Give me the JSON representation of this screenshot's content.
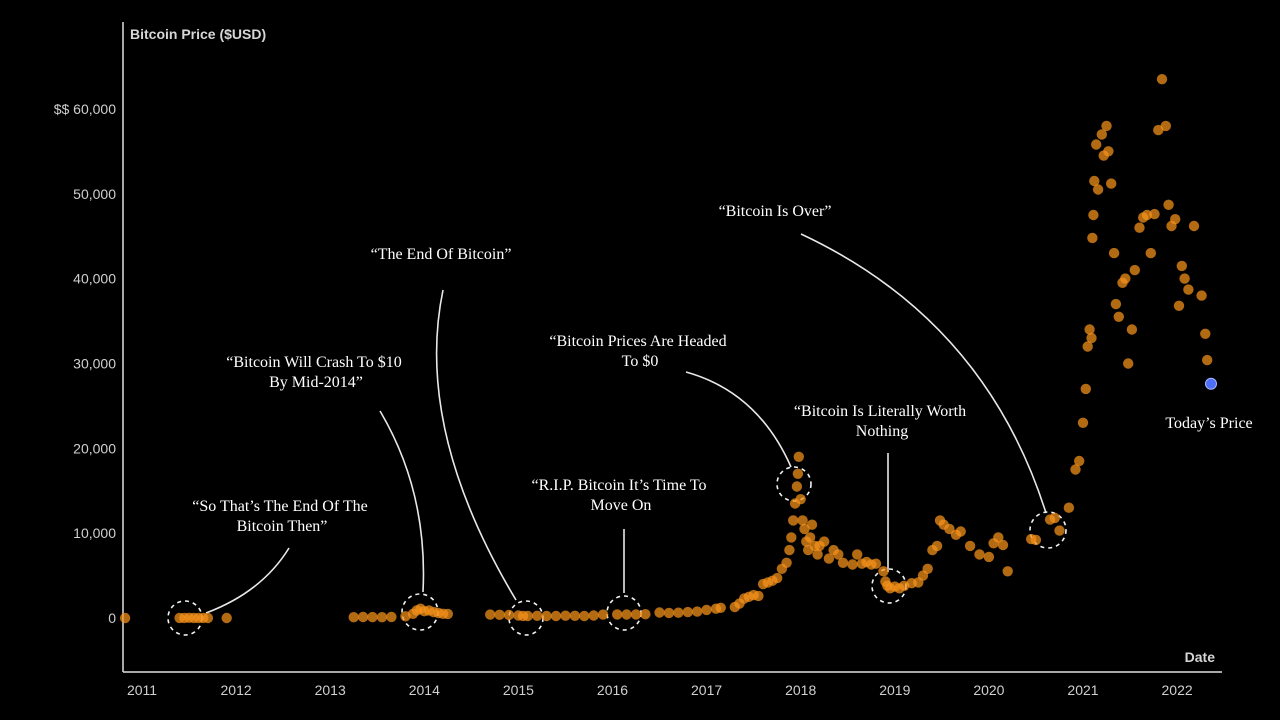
{
  "chart_data": {
    "type": "scatter",
    "title": "",
    "ylabel": "Bitcoin Price ($USD)",
    "xlabel": "Date",
    "xlim": [
      2010.85,
      2022.45
    ],
    "ylim": [
      -6000,
      68000
    ],
    "grid": false,
    "y_ticks": [
      {
        "value": 0,
        "label": "0"
      },
      {
        "value": 10000,
        "label": "10,000"
      },
      {
        "value": 20000,
        "label": "20,000"
      },
      {
        "value": 30000,
        "label": "30,000"
      },
      {
        "value": 40000,
        "label": "40,000"
      },
      {
        "value": 50000,
        "label": "50,000"
      },
      {
        "value": 60000,
        "label": "$$ 60,000"
      }
    ],
    "x_ticks": [
      {
        "value": 2011,
        "label": "2011"
      },
      {
        "value": 2012,
        "label": "2012"
      },
      {
        "value": 2013,
        "label": "2013"
      },
      {
        "value": 2014,
        "label": "2014"
      },
      {
        "value": 2015,
        "label": "2015"
      },
      {
        "value": 2016,
        "label": "2016"
      },
      {
        "value": 2017,
        "label": "2017"
      },
      {
        "value": 2018,
        "label": "2018"
      },
      {
        "value": 2019,
        "label": "2019"
      },
      {
        "value": 2020,
        "label": "2020"
      },
      {
        "value": 2021,
        "label": "2021"
      },
      {
        "value": 2022,
        "label": "2022"
      }
    ],
    "series": [
      {
        "name": "Bitcoin Price",
        "color": "#f7931a",
        "points": [
          [
            2010.82,
            0
          ],
          [
            2011.4,
            10
          ],
          [
            2011.45,
            15
          ],
          [
            2011.5,
            20
          ],
          [
            2011.55,
            15
          ],
          [
            2011.6,
            12
          ],
          [
            2011.65,
            8
          ],
          [
            2011.7,
            5
          ],
          [
            2011.9,
            3
          ],
          [
            2013.25,
            100
          ],
          [
            2013.35,
            120
          ],
          [
            2013.45,
            110
          ],
          [
            2013.55,
            100
          ],
          [
            2013.65,
            130
          ],
          [
            2013.8,
            200
          ],
          [
            2013.88,
            500
          ],
          [
            2013.92,
            900
          ],
          [
            2013.96,
            1100
          ],
          [
            2014.0,
            800
          ],
          [
            2014.05,
            900
          ],
          [
            2014.1,
            700
          ],
          [
            2014.15,
            600
          ],
          [
            2014.2,
            500
          ],
          [
            2014.25,
            480
          ],
          [
            2014.7,
            400
          ],
          [
            2014.8,
            380
          ],
          [
            2014.9,
            350
          ],
          [
            2015.0,
            300
          ],
          [
            2015.05,
            250
          ],
          [
            2015.1,
            240
          ],
          [
            2015.2,
            260
          ],
          [
            2015.3,
            240
          ],
          [
            2015.4,
            230
          ],
          [
            2015.5,
            270
          ],
          [
            2015.6,
            260
          ],
          [
            2015.7,
            240
          ],
          [
            2015.8,
            300
          ],
          [
            2015.9,
            400
          ],
          [
            2016.05,
            420
          ],
          [
            2016.15,
            410
          ],
          [
            2016.25,
            430
          ],
          [
            2016.35,
            450
          ],
          [
            2016.5,
            650
          ],
          [
            2016.6,
            600
          ],
          [
            2016.7,
            620
          ],
          [
            2016.8,
            700
          ],
          [
            2016.9,
            750
          ],
          [
            2017.0,
            950
          ],
          [
            2017.1,
            1100
          ],
          [
            2017.15,
            1200
          ],
          [
            2017.3,
            1300
          ],
          [
            2017.35,
            1700
          ],
          [
            2017.4,
            2300
          ],
          [
            2017.45,
            2500
          ],
          [
            2017.5,
            2700
          ],
          [
            2017.55,
            2600
          ],
          [
            2017.6,
            4000
          ],
          [
            2017.65,
            4200
          ],
          [
            2017.7,
            4400
          ],
          [
            2017.75,
            4700
          ],
          [
            2017.8,
            5800
          ],
          [
            2017.85,
            6500
          ],
          [
            2017.88,
            8000
          ],
          [
            2017.9,
            9500
          ],
          [
            2017.92,
            11500
          ],
          [
            2017.94,
            13500
          ],
          [
            2017.96,
            15500
          ],
          [
            2017.97,
            17000
          ],
          [
            2017.98,
            19000
          ],
          [
            2018.0,
            14000
          ],
          [
            2018.02,
            11500
          ],
          [
            2018.04,
            10500
          ],
          [
            2018.06,
            9000
          ],
          [
            2018.08,
            8000
          ],
          [
            2018.1,
            9500
          ],
          [
            2018.12,
            11000
          ],
          [
            2018.15,
            8500
          ],
          [
            2018.18,
            7500
          ],
          [
            2018.2,
            8500
          ],
          [
            2018.25,
            9000
          ],
          [
            2018.3,
            7000
          ],
          [
            2018.35,
            8000
          ],
          [
            2018.4,
            7500
          ],
          [
            2018.45,
            6500
          ],
          [
            2018.55,
            6300
          ],
          [
            2018.6,
            7500
          ],
          [
            2018.65,
            6400
          ],
          [
            2018.7,
            6600
          ],
          [
            2018.75,
            6300
          ],
          [
            2018.8,
            6400
          ],
          [
            2018.88,
            5500
          ],
          [
            2018.9,
            4300
          ],
          [
            2018.92,
            3800
          ],
          [
            2018.95,
            3500
          ],
          [
            2019.0,
            3700
          ],
          [
            2019.05,
            3500
          ],
          [
            2019.1,
            3800
          ],
          [
            2019.18,
            4100
          ],
          [
            2019.25,
            4200
          ],
          [
            2019.3,
            5000
          ],
          [
            2019.35,
            5800
          ],
          [
            2019.4,
            8000
          ],
          [
            2019.45,
            8500
          ],
          [
            2019.48,
            11500
          ],
          [
            2019.52,
            11000
          ],
          [
            2019.58,
            10500
          ],
          [
            2019.65,
            9800
          ],
          [
            2019.7,
            10200
          ],
          [
            2019.8,
            8500
          ],
          [
            2019.9,
            7500
          ],
          [
            2020.0,
            7200
          ],
          [
            2020.05,
            8800
          ],
          [
            2020.1,
            9500
          ],
          [
            2020.15,
            8600
          ],
          [
            2020.2,
            5500
          ],
          [
            2020.45,
            9300
          ],
          [
            2020.5,
            9200
          ],
          [
            2020.65,
            11600
          ],
          [
            2020.7,
            11800
          ],
          [
            2020.75,
            10300
          ],
          [
            2020.85,
            13000
          ],
          [
            2020.92,
            17500
          ],
          [
            2020.96,
            18500
          ],
          [
            2021.0,
            23000
          ],
          [
            2021.03,
            27000
          ],
          [
            2021.05,
            32000
          ],
          [
            2021.07,
            34000
          ],
          [
            2021.09,
            33000
          ],
          [
            2021.1,
            44800
          ],
          [
            2021.11,
            47500
          ],
          [
            2021.12,
            51500
          ],
          [
            2021.14,
            55800
          ],
          [
            2021.16,
            50500
          ],
          [
            2021.2,
            57000
          ],
          [
            2021.22,
            54500
          ],
          [
            2021.25,
            58000
          ],
          [
            2021.27,
            55000
          ],
          [
            2021.3,
            51200
          ],
          [
            2021.33,
            43000
          ],
          [
            2021.35,
            37000
          ],
          [
            2021.38,
            35500
          ],
          [
            2021.42,
            39500
          ],
          [
            2021.45,
            40000
          ],
          [
            2021.48,
            30000
          ],
          [
            2021.52,
            34000
          ],
          [
            2021.55,
            41000
          ],
          [
            2021.6,
            46000
          ],
          [
            2021.64,
            47200
          ],
          [
            2021.68,
            47500
          ],
          [
            2021.72,
            43000
          ],
          [
            2021.76,
            47600
          ],
          [
            2021.8,
            57500
          ],
          [
            2021.84,
            63500
          ],
          [
            2021.88,
            58000
          ],
          [
            2021.91,
            48700
          ],
          [
            2021.94,
            46200
          ],
          [
            2021.98,
            47000
          ],
          [
            2022.02,
            36800
          ],
          [
            2022.05,
            41500
          ],
          [
            2022.08,
            40000
          ],
          [
            2022.12,
            38700
          ],
          [
            2022.18,
            46200
          ],
          [
            2022.26,
            38000
          ],
          [
            2022.3,
            33500
          ],
          [
            2022.32,
            30400
          ]
        ]
      },
      {
        "name": "Today's Price",
        "color": "#4d6ef7",
        "points": [
          [
            2022.36,
            27600
          ]
        ]
      }
    ],
    "annotations": [
      {
        "lines": [
          "“So That’s The End Of The",
          "Bitcoin Then”"
        ],
        "target": [
          2011.5,
          0
        ]
      },
      {
        "lines": [
          "“Bitcoin Will Crash To $10",
          "By Mid-2014”"
        ],
        "target": [
          2013.95,
          600
        ]
      },
      {
        "lines": [
          "“The End Of Bitcoin”"
        ],
        "target": [
          2015.1,
          0
        ]
      },
      {
        "lines": [
          "“R.I.P. Bitcoin It’s Time To",
          "Move On"
        ],
        "target": [
          2016.15,
          300
        ]
      },
      {
        "lines": [
          "“Bitcoin Prices Are Headed",
          "To $0"
        ],
        "target": [
          2017.98,
          15600
        ]
      },
      {
        "lines": [
          "“Bitcoin Is Literally Worth",
          "Nothing"
        ],
        "target": [
          2019.0,
          3800
        ]
      },
      {
        "lines": [
          "“Bitcoin Is Over”"
        ],
        "target": [
          2020.7,
          10500
        ]
      },
      {
        "lines": [
          "Today’s Price"
        ],
        "target": [
          2022.36,
          27600
        ]
      }
    ]
  }
}
